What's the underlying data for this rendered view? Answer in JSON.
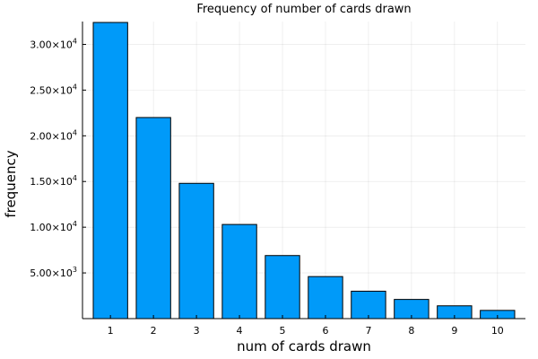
{
  "chart_data": {
    "type": "bar",
    "title": "Frequency of number of cards drawn",
    "xlabel": "num of cards drawn",
    "ylabel": "frequency",
    "categories": [
      "1",
      "2",
      "3",
      "4",
      "5",
      "6",
      "7",
      "8",
      "9",
      "10"
    ],
    "values": [
      32400,
      22000,
      14800,
      10300,
      6900,
      4600,
      3000,
      2100,
      1400,
      900
    ],
    "ylim": [
      0,
      32500
    ],
    "yticks": [
      {
        "value": 5000,
        "mantissa": "5.00",
        "exp": "3"
      },
      {
        "value": 10000,
        "mantissa": "1.00",
        "exp": "4"
      },
      {
        "value": 15000,
        "mantissa": "1.50",
        "exp": "4"
      },
      {
        "value": 20000,
        "mantissa": "2.00",
        "exp": "4"
      },
      {
        "value": 25000,
        "mantissa": "2.50",
        "exp": "4"
      },
      {
        "value": 30000,
        "mantissa": "3.00",
        "exp": "4"
      }
    ],
    "grid": true,
    "legend": "none",
    "bar_color": "#009AF9"
  }
}
